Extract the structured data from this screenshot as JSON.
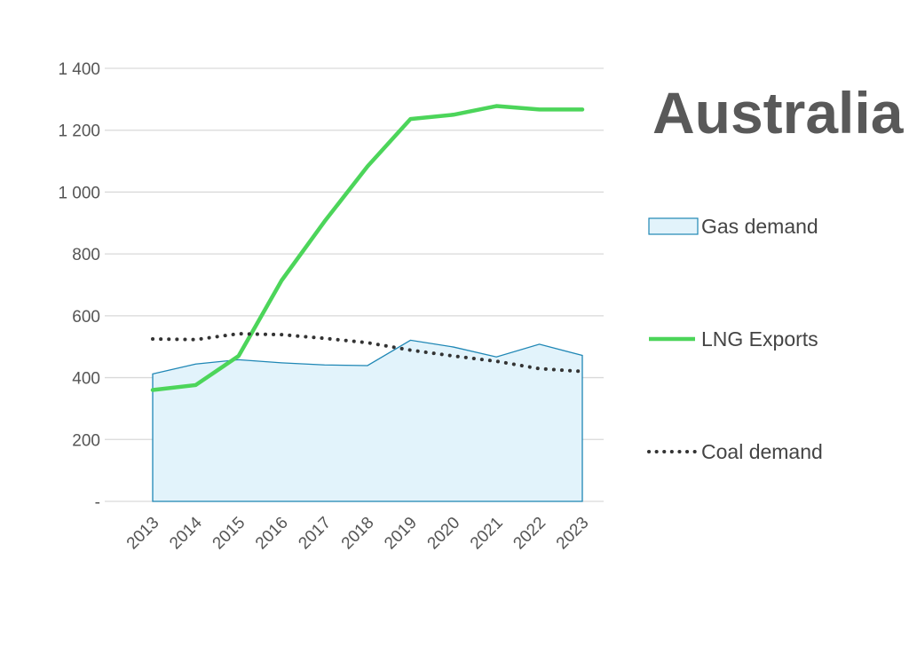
{
  "chart_data": {
    "type": "line",
    "title": "Australia",
    "xlabel": "",
    "ylabel": "",
    "x": [
      "2013",
      "2014",
      "2015",
      "2016",
      "2017",
      "2018",
      "2019",
      "2020",
      "2021",
      "2022",
      "2023"
    ],
    "ylim": [
      0,
      1400
    ],
    "yticks": [
      0,
      200,
      400,
      600,
      800,
      1000,
      1200,
      1400
    ],
    "ytick_labels": [
      "-",
      "200",
      "400",
      "600",
      "800",
      "1 000",
      "1 200",
      "1 400"
    ],
    "grid": true,
    "legend_position": "right",
    "series": [
      {
        "name": "Gas demand",
        "style": "area",
        "color": "#1f87b5",
        "fill": "#e2f3fb",
        "values": [
          412,
          444,
          458,
          448,
          441,
          439,
          521,
          499,
          467,
          508,
          472
        ]
      },
      {
        "name": "LNG Exports",
        "style": "line",
        "color": "#4cd55a",
        "values": [
          360,
          376,
          470,
          714,
          905,
          1083,
          1236,
          1250,
          1278,
          1267,
          1267
        ]
      },
      {
        "name": "Coal demand",
        "style": "dotted",
        "color": "#333333",
        "values": [
          525,
          523,
          542,
          539,
          527,
          513,
          489,
          470,
          453,
          429,
          420
        ]
      }
    ]
  }
}
